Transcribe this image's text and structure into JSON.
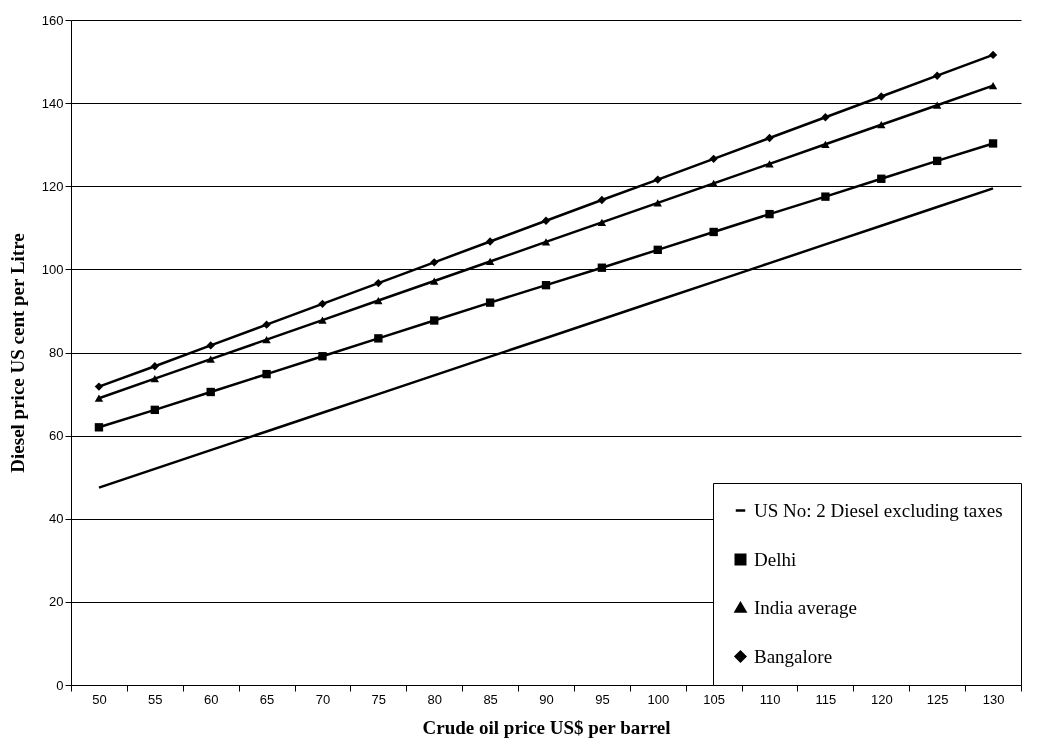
{
  "chart_data": {
    "type": "line",
    "xlabel": "Crude oil price US$ per barrel",
    "ylabel": "Diesel price US cent per Litre",
    "categories": [
      "50",
      "55",
      "60",
      "65",
      "70",
      "75",
      "80",
      "85",
      "90",
      "95",
      "100",
      "105",
      "110",
      "115",
      "120",
      "125",
      "130"
    ],
    "series": [
      {
        "name": "US No: 2 Diesel excluding taxes",
        "color": "#000000",
        "marker": "none",
        "values": [
          47.5,
          52,
          56.5,
          61,
          65.5,
          70,
          74.5,
          79,
          83.5,
          88,
          92.5,
          97,
          101.5,
          106,
          110.5,
          115,
          119.5
        ]
      },
      {
        "name": "Delhi",
        "color": "#000000",
        "marker": "square",
        "values": [
          62,
          66.2,
          70.5,
          74.8,
          79.1,
          83.4,
          87.7,
          92,
          96.2,
          100.4,
          104.7,
          109,
          113.3,
          117.5,
          121.8,
          126.1,
          130.3
        ]
      },
      {
        "name": "India average",
        "color": "#000000",
        "marker": "triangle",
        "values": [
          69,
          73.7,
          78.4,
          83.1,
          87.8,
          92.5,
          97.2,
          101.9,
          106.6,
          111.3,
          116,
          120.7,
          125.4,
          130.1,
          134.8,
          139.5,
          144.2
        ]
      },
      {
        "name": "Bangalore",
        "color": "#000000",
        "marker": "diamond",
        "values": [
          71.8,
          76.7,
          81.7,
          86.7,
          91.7,
          96.7,
          101.7,
          106.7,
          111.7,
          116.7,
          121.6,
          126.6,
          131.6,
          136.6,
          141.6,
          146.6,
          151.6
        ]
      }
    ],
    "ylim": [
      0,
      160
    ],
    "yticks": [
      0,
      20,
      40,
      60,
      80,
      100,
      120,
      140,
      160
    ],
    "grid": "y",
    "legend": "bottom right",
    "line_style": "solid"
  }
}
